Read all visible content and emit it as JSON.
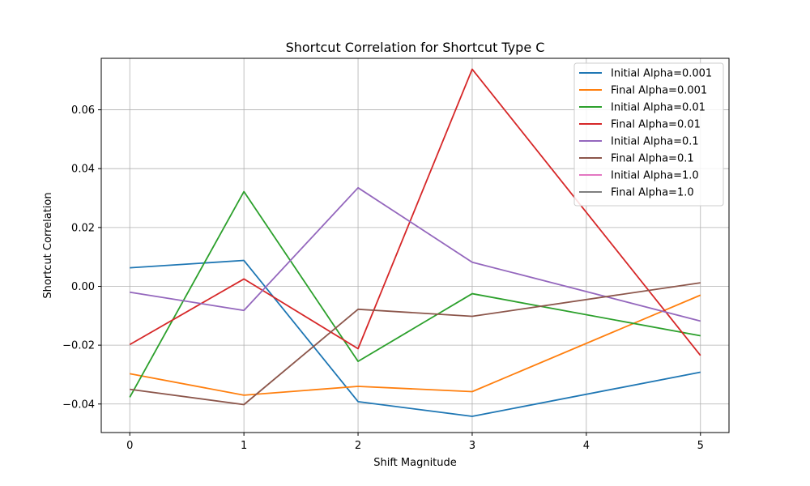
{
  "chart_data": {
    "type": "line",
    "title": "Shortcut Correlation for Shortcut Type C",
    "xlabel": "Shift Magnitude",
    "ylabel": "Shortcut Correlation",
    "x": [
      0,
      1,
      2,
      3,
      4,
      5
    ],
    "xlim": [
      -0.25,
      5.25
    ],
    "ylim": [
      -0.0497,
      0.0775
    ],
    "xticks": [
      0,
      1,
      2,
      3,
      4,
      5
    ],
    "xtick_labels": [
      "0",
      "1",
      "2",
      "3",
      "4",
      "5"
    ],
    "yticks": [
      -0.04,
      -0.02,
      0.0,
      0.02,
      0.04,
      0.06
    ],
    "ytick_labels": [
      "−0.04",
      "−0.02",
      "0.00",
      "0.02",
      "0.04",
      "0.06"
    ],
    "grid": true,
    "legend_position": "top-right",
    "series": [
      {
        "name": "Initial Alpha=0.001",
        "color": "#1f77b4",
        "x": [
          0,
          1,
          2,
          3,
          5
        ],
        "values": [
          0.0063,
          0.0088,
          -0.0392,
          -0.0442,
          -0.0292
        ]
      },
      {
        "name": "Final Alpha=0.001",
        "color": "#ff7f0e",
        "x": [
          0,
          1,
          2,
          3,
          5
        ],
        "values": [
          -0.0297,
          -0.037,
          -0.034,
          -0.0358,
          -0.003
        ]
      },
      {
        "name": "Initial Alpha=0.01",
        "color": "#2ca02c",
        "x": [
          0,
          1,
          2,
          3,
          5
        ],
        "values": [
          -0.0377,
          0.0322,
          -0.0255,
          -0.0025,
          -0.0168
        ]
      },
      {
        "name": "Final Alpha=0.01",
        "color": "#d62728",
        "x": [
          0,
          1,
          2,
          3,
          5
        ],
        "values": [
          -0.0198,
          0.0025,
          -0.0212,
          0.0738,
          -0.0235
        ]
      },
      {
        "name": "Initial Alpha=0.1",
        "color": "#9467bd",
        "x": [
          0,
          1,
          2,
          3,
          5
        ],
        "values": [
          -0.002,
          -0.0082,
          0.0335,
          0.0082,
          -0.0118
        ]
      },
      {
        "name": "Final Alpha=0.1",
        "color": "#8c564b",
        "x": [
          0,
          1,
          2,
          3,
          5
        ],
        "values": [
          -0.035,
          -0.0402,
          -0.0078,
          -0.0102,
          0.0012
        ]
      },
      {
        "name": "Initial Alpha=1.0",
        "color": "#e377c2",
        "x": [],
        "values": []
      },
      {
        "name": "Final Alpha=1.0",
        "color": "#7f7f7f",
        "x": [],
        "values": []
      }
    ]
  }
}
